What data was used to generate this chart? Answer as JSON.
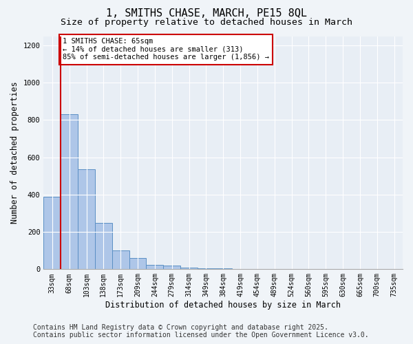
{
  "title_line1": "1, SMITHS CHASE, MARCH, PE15 8QL",
  "title_line2": "Size of property relative to detached houses in March",
  "xlabel": "Distribution of detached houses by size in March",
  "ylabel": "Number of detached properties",
  "bar_labels": [
    "33sqm",
    "68sqm",
    "103sqm",
    "138sqm",
    "173sqm",
    "209sqm",
    "244sqm",
    "279sqm",
    "314sqm",
    "349sqm",
    "384sqm",
    "419sqm",
    "454sqm",
    "489sqm",
    "524sqm",
    "560sqm",
    "595sqm",
    "630sqm",
    "665sqm",
    "700sqm",
    "735sqm"
  ],
  "bar_heights": [
    390,
    830,
    535,
    248,
    100,
    60,
    25,
    18,
    10,
    6,
    4,
    3,
    2,
    2,
    2,
    1,
    1,
    1,
    1,
    1,
    1
  ],
  "bar_color": "#aec6e8",
  "bar_edge_color": "#5a8fc4",
  "vline_color": "#cc0000",
  "annotation_text": "1 SMITHS CHASE: 65sqm\n← 14% of detached houses are smaller (313)\n85% of semi-detached houses are larger (1,856) →",
  "annotation_box_color": "#cc0000",
  "ylim": [
    0,
    1250
  ],
  "yticks": [
    0,
    200,
    400,
    600,
    800,
    1000,
    1200
  ],
  "footer_line1": "Contains HM Land Registry data © Crown copyright and database right 2025.",
  "footer_line2": "Contains public sector information licensed under the Open Government Licence v3.0.",
  "bg_color": "#f0f4f8",
  "plot_bg_color": "#e8eef5",
  "grid_color": "#ffffff",
  "title_fontsize": 11,
  "subtitle_fontsize": 9.5,
  "label_fontsize": 8.5,
  "tick_fontsize": 7,
  "footer_fontsize": 7
}
